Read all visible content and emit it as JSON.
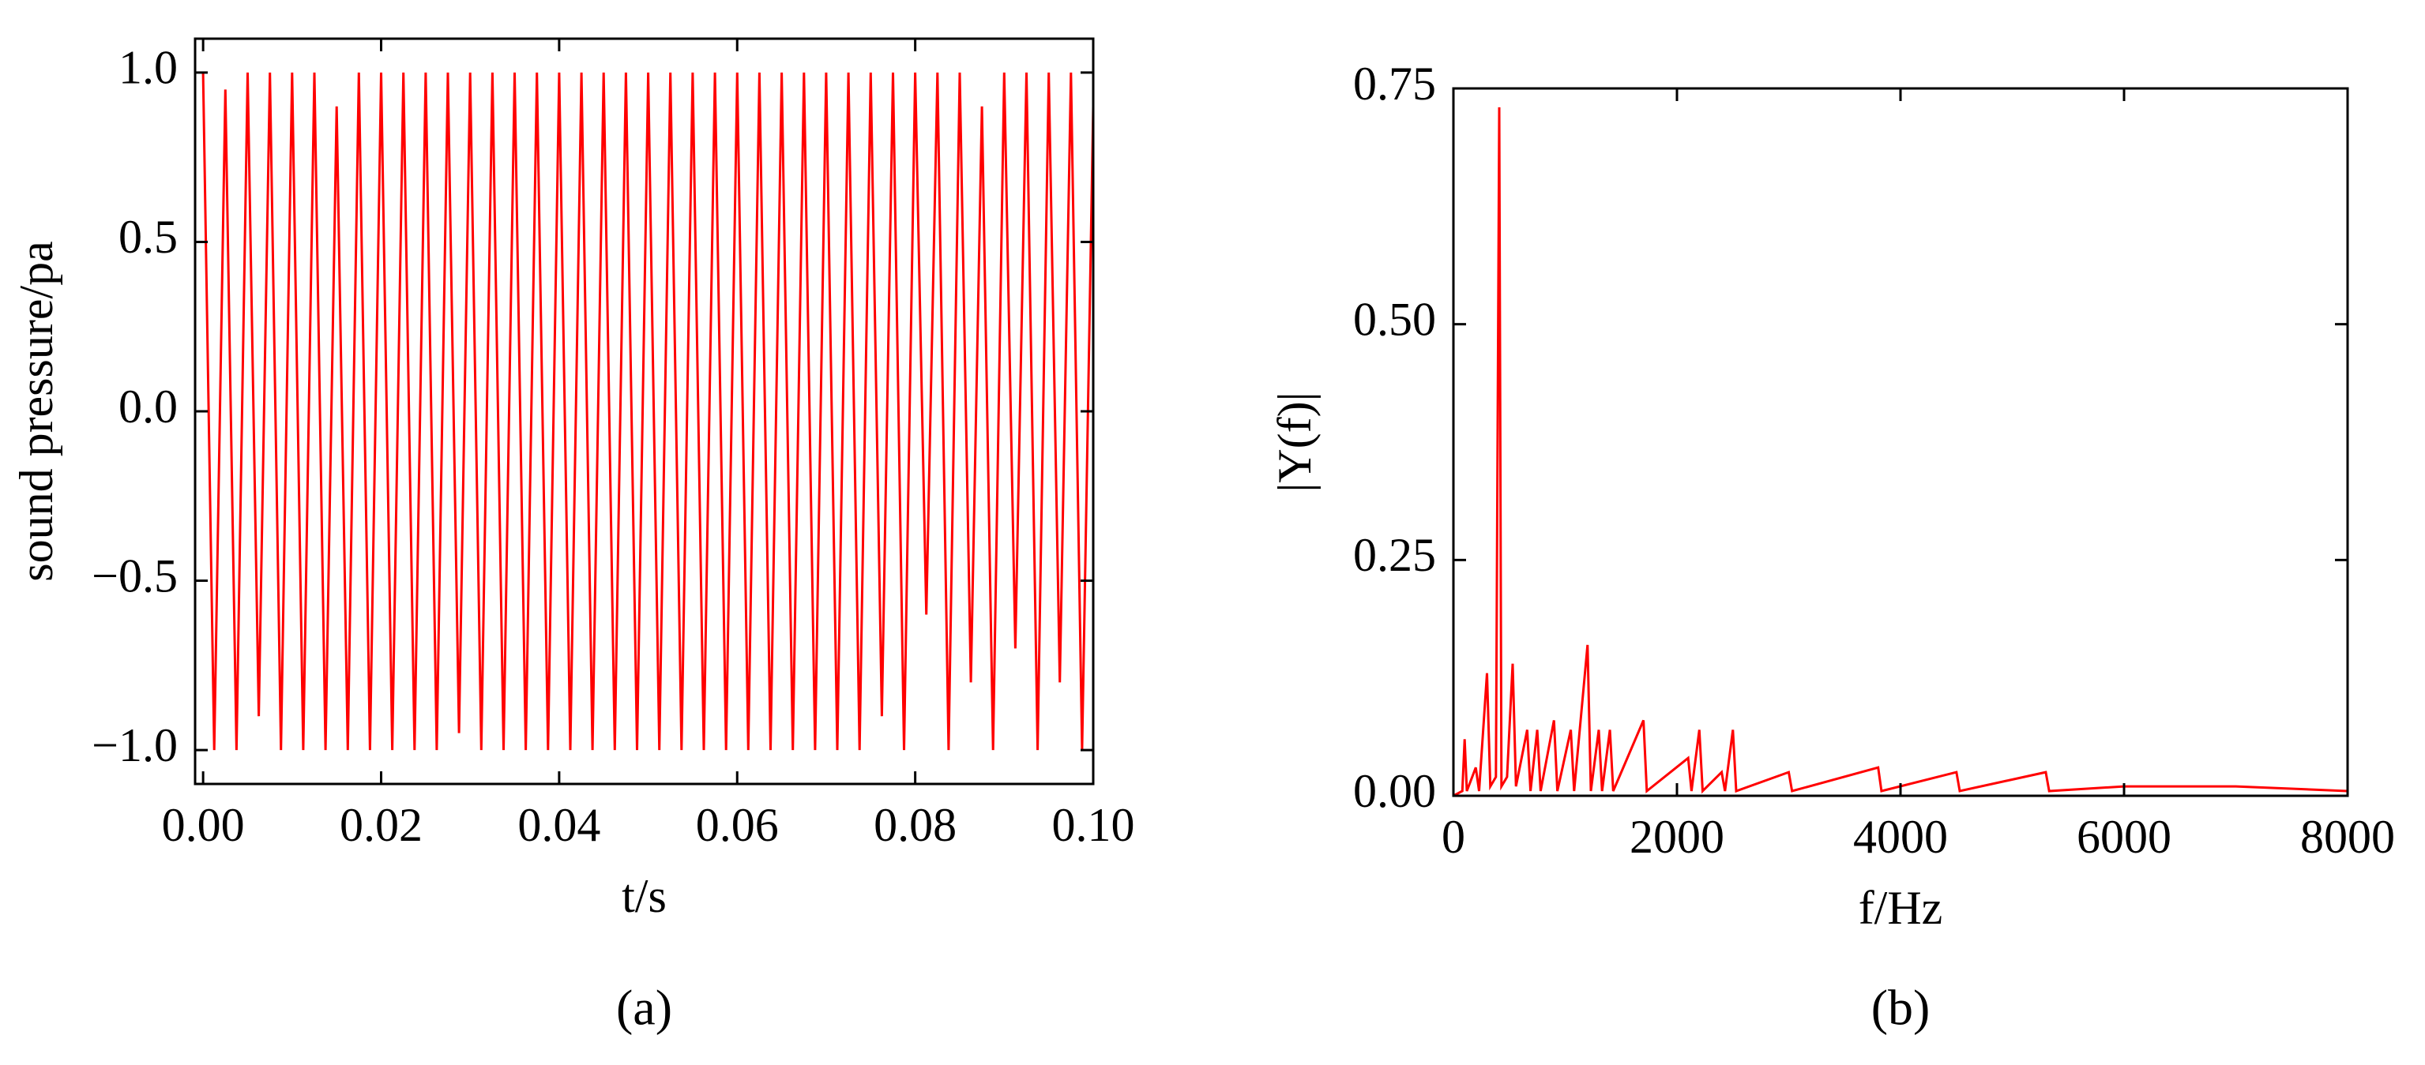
{
  "chart_data": [
    {
      "type": "line",
      "caption": "(a)",
      "x_label": "t/s",
      "y_label": "sound pressure/pa",
      "xlim": [
        -0.0009,
        0.1
      ],
      "ylim": [
        -1.1,
        1.1
      ],
      "xticks": [
        {
          "value": 0,
          "label": "0.00"
        },
        {
          "value": 0.02,
          "label": "0.02"
        },
        {
          "value": 0.04,
          "label": "0.04"
        },
        {
          "value": 0.06,
          "label": "0.06"
        },
        {
          "value": 0.08,
          "label": "0.08"
        },
        {
          "value": 0.1,
          "label": "0.10"
        }
      ],
      "yticks": [
        {
          "value": -1,
          "label": "−1.0"
        },
        {
          "value": -0.5,
          "label": "−0.5"
        },
        {
          "value": 0,
          "label": "0.0"
        },
        {
          "value": 0.5,
          "label": "0.5"
        },
        {
          "value": 1,
          "label": "1.0"
        }
      ],
      "series": [
        {
          "color": "#ff0000",
          "x": [
            0,
            0.00125,
            0.0025,
            0.00375,
            0.005,
            0.00625,
            0.0075,
            0.00875,
            0.01,
            0.01125,
            0.0125,
            0.01375,
            0.015,
            0.01625,
            0.0175,
            0.01875,
            0.02,
            0.02125,
            0.0225,
            0.02375,
            0.025,
            0.02625,
            0.0275,
            0.02875,
            0.03,
            0.03125,
            0.0325,
            0.03375,
            0.035,
            0.03625,
            0.0375,
            0.03875,
            0.04,
            0.04125,
            0.0425,
            0.04375,
            0.045,
            0.04625,
            0.0475,
            0.04875,
            0.05,
            0.05125,
            0.0525,
            0.05375,
            0.055,
            0.05625,
            0.0575,
            0.05875,
            0.06,
            0.06125,
            0.0625,
            0.06375,
            0.065,
            0.06625,
            0.0675,
            0.06875,
            0.07,
            0.07125,
            0.0725,
            0.07375,
            0.075,
            0.07625,
            0.0775,
            0.07875,
            0.08,
            0.08125,
            0.0825,
            0.08375,
            0.085,
            0.08625,
            0.0875,
            0.08875,
            0.09,
            0.09125,
            0.0925,
            0.09375,
            0.095,
            0.09625,
            0.0975,
            0.09875,
            0.1
          ],
          "values": [
            1,
            -1,
            0.95,
            -1,
            1,
            -0.9,
            1,
            -1,
            1,
            -1,
            1,
            -1,
            0.9,
            -1,
            1,
            -1,
            1,
            -1,
            1,
            -1,
            1,
            -1,
            1,
            -0.95,
            1,
            -1,
            1,
            -1,
            1,
            -1,
            1,
            -1,
            1,
            -1,
            1,
            -1,
            1,
            -1,
            1,
            -1,
            1,
            -1,
            1,
            -1,
            1,
            -1,
            1,
            -1,
            1,
            -1,
            1,
            -1,
            1,
            -1,
            1,
            -1,
            1,
            -1,
            1,
            -1,
            1,
            -0.9,
            1,
            -1,
            1,
            -0.6,
            1,
            -1,
            1,
            -0.8,
            0.9,
            -1,
            1,
            -0.7,
            1,
            -1,
            1,
            -0.8,
            1,
            -1,
            0.9
          ]
        }
      ]
    },
    {
      "type": "line",
      "caption": "(b)",
      "x_label": "f/Hz",
      "y_label": "|Y(f)|",
      "xlim": [
        0,
        8000
      ],
      "ylim": [
        0,
        0.75
      ],
      "xticks": [
        0,
        2000,
        4000,
        6000,
        8000
      ],
      "yticks": [
        {
          "value": 0,
          "label": "0.00"
        },
        {
          "value": 0.25,
          "label": "0.25"
        },
        {
          "value": 0.5,
          "label": "0.50"
        },
        {
          "value": 0.75,
          "label": "0.75"
        }
      ],
      "series": [
        {
          "color": "#ff0000",
          "x": [
            0,
            80,
            100,
            120,
            200,
            230,
            300,
            330,
            380,
            410,
            430,
            480,
            530,
            560,
            660,
            690,
            750,
            780,
            900,
            930,
            1050,
            1080,
            1200,
            1230,
            1300,
            1330,
            1400,
            1430,
            1700,
            1730,
            2100,
            2130,
            2200,
            2230,
            2400,
            2430,
            2500,
            2530,
            3000,
            3030,
            3800,
            3830,
            4500,
            4530,
            5300,
            5330,
            6000,
            7000,
            8000
          ],
          "values": [
            0,
            0.005,
            0.06,
            0.005,
            0.03,
            0.005,
            0.13,
            0.01,
            0.02,
            0.73,
            0.01,
            0.02,
            0.14,
            0.01,
            0.07,
            0.005,
            0.07,
            0.005,
            0.08,
            0.005,
            0.07,
            0.005,
            0.16,
            0.005,
            0.07,
            0.005,
            0.07,
            0.005,
            0.08,
            0.005,
            0.04,
            0.005,
            0.07,
            0.005,
            0.025,
            0.005,
            0.07,
            0.005,
            0.025,
            0.005,
            0.03,
            0.005,
            0.025,
            0.005,
            0.025,
            0.005,
            0.01,
            0.01,
            0.005
          ]
        }
      ]
    }
  ]
}
